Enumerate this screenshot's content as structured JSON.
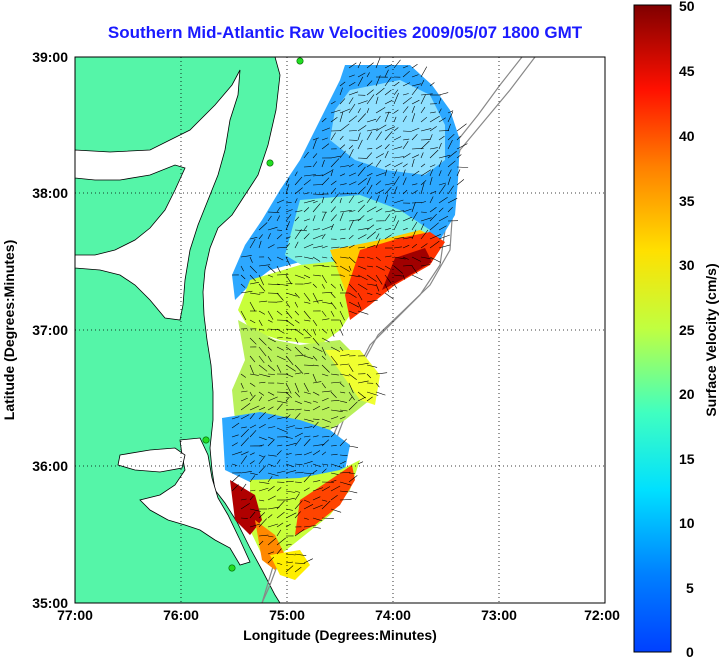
{
  "title": "Southern Mid-Atlantic Raw Velocities 2009/05/07 1800 GMT",
  "xlabel": "Longitude (Degrees:Minutes)",
  "ylabel": "Latitude (Degrees:Minutes)",
  "colorbar_label": "Surface Velocity (cm/s)",
  "x_ticks": [
    "77:00",
    "76:00",
    "75:00",
    "74:00",
    "73:00",
    "72:00"
  ],
  "y_ticks": [
    "39:00",
    "38:00",
    "37:00",
    "36:00",
    "35:00"
  ],
  "colorbar_ticks": [
    "50",
    "45",
    "40",
    "35",
    "30",
    "25",
    "20",
    "15",
    "10",
    "5",
    "0"
  ],
  "colors": {
    "land": "#55f5a8",
    "ocean": "#ffffff",
    "title": "#1a1aff",
    "station": "#22dd22"
  },
  "chart_data": {
    "type": "heatmap",
    "description_free": true,
    "x_range_deg": [
      -77,
      -72
    ],
    "y_range_deg": [
      35,
      39
    ],
    "color_range_cm_s": [
      0,
      50
    ],
    "colormap": "jet",
    "grid": true
  }
}
